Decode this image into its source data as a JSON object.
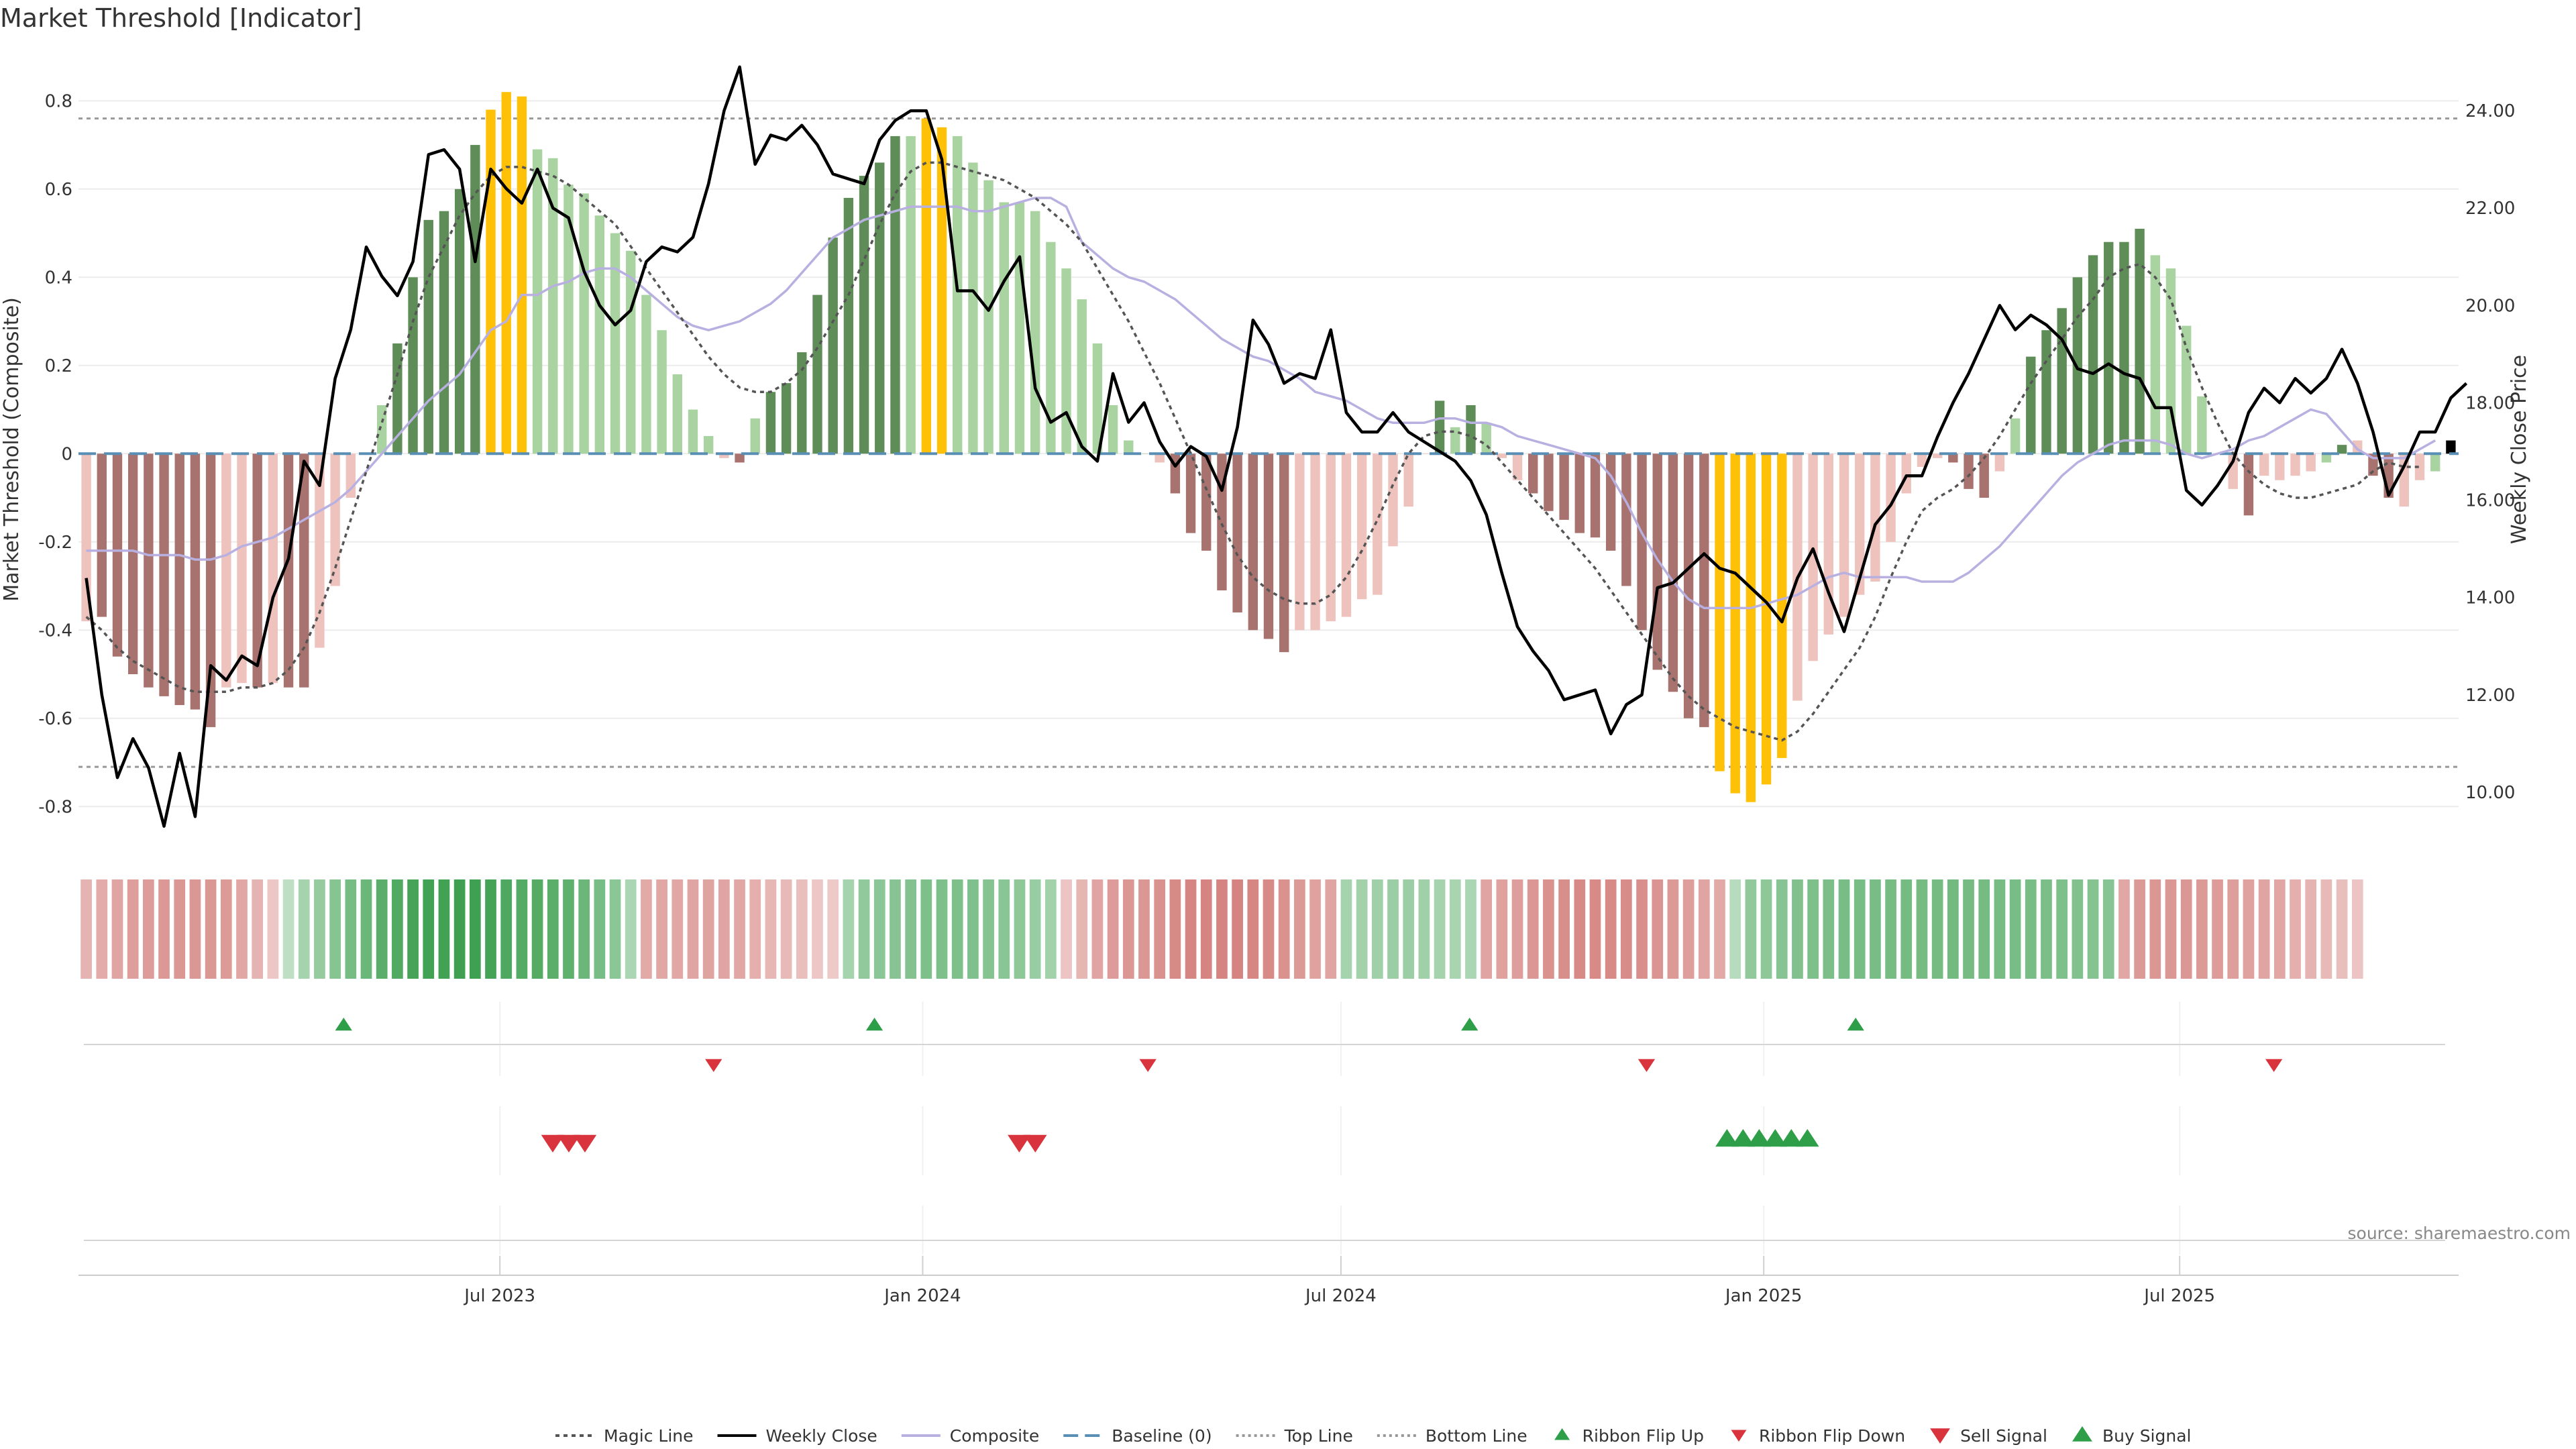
{
  "title": "Market Threshold [Indicator]",
  "source_note": "source: sharemaestro.com",
  "colors": {
    "dark_green": "#5f8d58",
    "light_green": "#a9d3a0",
    "dark_red": "#a8726f",
    "light_red": "#eec2bd",
    "gold": "#ffc107",
    "composite": "#b8b0e0",
    "magic": "#555555",
    "price": "#000000",
    "baseline": "#5a8fb5",
    "threshold": "#999999",
    "signal_green": "#2e9e48",
    "signal_red": "#d9343e"
  },
  "chart_data": {
    "type": "bar",
    "title": "Market Threshold [Indicator]",
    "ylabel": "Market Threshold (Composite)",
    "y2label": "Weekly Close Price",
    "ylim": [
      -0.9,
      0.91
    ],
    "y2lim": [
      8.8,
      25.2
    ],
    "yticks": [
      "0.8",
      "0.6",
      "0.4",
      "0.2",
      "0",
      "-0.2",
      "-0.4",
      "-0.6",
      "-0.8"
    ],
    "y2ticks": [
      "24.00",
      "22.00",
      "20.00",
      "18.00",
      "16.00",
      "14.00",
      "12.00",
      "10.00"
    ],
    "top_line": 0.76,
    "bottom_line": -0.71,
    "x_start_date": "2023-01-02",
    "x_end_date": "2025-10-27",
    "xticks": [
      {
        "date": "2023-07-01",
        "label": "Jul 2023"
      },
      {
        "date": "2024-01-01",
        "label": "Jan 2024"
      },
      {
        "date": "2024-07-01",
        "label": "Jul 2024"
      },
      {
        "date": "2025-01-01",
        "label": "Jan 2025"
      },
      {
        "date": "2025-07-01",
        "label": "Jul 2025"
      }
    ],
    "histogram": [
      -0.38,
      -0.37,
      -0.46,
      -0.5,
      -0.53,
      -0.55,
      -0.57,
      -0.58,
      -0.62,
      -0.53,
      -0.52,
      -0.53,
      -0.52,
      -0.53,
      -0.53,
      -0.44,
      -0.3,
      -0.1,
      0.0,
      0.11,
      0.25,
      0.4,
      0.53,
      0.55,
      0.6,
      0.7,
      0.78,
      0.82,
      0.81,
      0.69,
      0.67,
      0.61,
      0.59,
      0.54,
      0.5,
      0.46,
      0.36,
      0.28,
      0.18,
      0.1,
      0.04,
      -0.01,
      -0.02,
      0.08,
      0.14,
      0.16,
      0.23,
      0.36,
      0.49,
      0.58,
      0.63,
      0.66,
      0.72,
      0.72,
      0.76,
      0.74,
      0.72,
      0.66,
      0.62,
      0.57,
      0.57,
      0.55,
      0.48,
      0.42,
      0.35,
      0.25,
      0.11,
      0.03,
      0.0,
      -0.02,
      -0.09,
      -0.18,
      -0.22,
      -0.31,
      -0.36,
      -0.4,
      -0.42,
      -0.45,
      -0.4,
      -0.4,
      -0.38,
      -0.37,
      -0.33,
      -0.32,
      -0.21,
      -0.12,
      0.0,
      0.12,
      0.06,
      0.11,
      0.07,
      -0.01,
      -0.06,
      -0.09,
      -0.13,
      -0.15,
      -0.18,
      -0.19,
      -0.22,
      -0.3,
      -0.4,
      -0.49,
      -0.54,
      -0.6,
      -0.62,
      -0.72,
      -0.77,
      -0.79,
      -0.75,
      -0.69,
      -0.56,
      -0.47,
      -0.41,
      -0.37,
      -0.32,
      -0.29,
      -0.2,
      -0.09,
      -0.03,
      -0.01,
      -0.02,
      -0.08,
      -0.1,
      -0.04,
      0.08,
      0.22,
      0.28,
      0.33,
      0.4,
      0.45,
      0.48,
      0.48,
      0.51,
      0.45,
      0.42,
      0.29,
      0.13,
      0.0,
      -0.08,
      -0.14,
      -0.05,
      -0.06,
      -0.05,
      -0.04,
      -0.02,
      0.02,
      0.03,
      -0.05,
      -0.1,
      -0.12,
      -0.06,
      -0.04,
      0.03
    ],
    "histogram_colors": [
      "light_red",
      "dark_red",
      "dark_red",
      "dark_red",
      "dark_red",
      "dark_red",
      "dark_red",
      "dark_red",
      "dark_red",
      "light_red",
      "light_red",
      "dark_red",
      "light_red",
      "dark_red",
      "dark_red",
      "light_red",
      "light_red",
      "light_red",
      "light_red",
      "light_green",
      "dark_green",
      "dark_green",
      "dark_green",
      "dark_green",
      "dark_green",
      "dark_green",
      "gold",
      "gold",
      "gold",
      "light_green",
      "light_green",
      "light_green",
      "light_green",
      "light_green",
      "light_green",
      "light_green",
      "light_green",
      "light_green",
      "light_green",
      "light_green",
      "light_green",
      "light_red",
      "dark_red",
      "light_green",
      "dark_green",
      "dark_green",
      "dark_green",
      "dark_green",
      "dark_green",
      "dark_green",
      "dark_green",
      "dark_green",
      "dark_green",
      "light_green",
      "gold",
      "gold",
      "light_green",
      "light_green",
      "light_green",
      "light_green",
      "light_green",
      "light_green",
      "light_green",
      "light_green",
      "light_green",
      "light_green",
      "light_green",
      "light_green",
      "light_green",
      "light_red",
      "dark_red",
      "dark_red",
      "dark_red",
      "dark_red",
      "dark_red",
      "dark_red",
      "dark_red",
      "dark_red",
      "light_red",
      "light_red",
      "light_red",
      "light_red",
      "light_red",
      "light_red",
      "light_red",
      "light_red",
      "light_red",
      "dark_green",
      "light_green",
      "dark_green",
      "light_green",
      "light_red",
      "light_red",
      "dark_red",
      "dark_red",
      "dark_red",
      "dark_red",
      "dark_red",
      "dark_red",
      "dark_red",
      "dark_red",
      "dark_red",
      "dark_red",
      "dark_red",
      "dark_red",
      "gold",
      "gold",
      "gold",
      "gold",
      "gold",
      "light_red",
      "light_red",
      "light_red",
      "light_red",
      "light_red",
      "light_red",
      "light_red",
      "light_red",
      "light_red",
      "light_red",
      "dark_red",
      "dark_red",
      "dark_red",
      "light_red",
      "light_green",
      "dark_green",
      "dark_green",
      "dark_green",
      "dark_green",
      "dark_green",
      "dark_green",
      "dark_green",
      "dark_green",
      "light_green",
      "light_green",
      "light_green",
      "light_green",
      "light_red",
      "light_red",
      "dark_red",
      "light_red",
      "light_red",
      "light_red",
      "light_red",
      "light_green",
      "dark_green",
      "light_red",
      "dark_red",
      "dark_red",
      "light_red",
      "light_red",
      "light_green"
    ],
    "weekly_close": [
      14.4,
      12.0,
      10.3,
      11.1,
      10.5,
      9.3,
      10.8,
      9.5,
      12.6,
      12.3,
      12.8,
      12.6,
      14.0,
      14.8,
      16.8,
      16.3,
      18.5,
      19.5,
      21.2,
      20.6,
      20.2,
      20.9,
      23.1,
      23.2,
      22.8,
      20.9,
      22.8,
      22.4,
      22.1,
      22.8,
      22.0,
      21.8,
      20.7,
      20.0,
      19.6,
      19.9,
      20.9,
      21.2,
      21.1,
      21.4,
      22.5,
      24.0,
      24.9,
      22.9,
      23.5,
      23.4,
      23.7,
      23.3,
      22.7,
      22.6,
      22.5,
      23.4,
      23.8,
      24.0,
      24.0,
      23.0,
      20.3,
      20.3,
      19.9,
      20.5,
      21.0,
      18.3,
      17.6,
      17.8,
      17.1,
      16.8,
      18.6,
      17.6,
      18.0,
      17.2,
      16.7,
      17.1,
      16.9,
      16.2,
      17.5,
      19.7,
      19.2,
      18.4,
      18.6,
      18.5,
      19.5,
      17.8,
      17.4,
      17.4,
      17.8,
      17.4,
      17.2,
      17.0,
      16.8,
      16.4,
      15.7,
      14.5,
      13.4,
      12.9,
      12.5,
      11.9,
      12.0,
      12.1,
      11.2,
      11.8,
      12.0,
      14.2,
      14.3,
      14.6,
      14.9,
      14.6,
      14.5,
      14.2,
      13.9,
      13.5,
      14.4,
      15.0,
      14.1,
      13.3,
      14.4,
      15.5,
      15.9,
      16.5,
      16.5,
      17.3,
      18.0,
      18.6,
      19.3,
      20.0,
      19.5,
      19.8,
      19.6,
      19.3,
      18.7,
      18.6,
      18.8,
      18.6,
      18.5,
      17.9,
      17.9,
      16.2,
      15.9,
      16.3,
      16.8,
      17.8,
      18.3,
      18.0,
      18.5,
      18.2,
      18.5,
      19.1,
      18.4,
      17.4,
      16.1,
      16.7,
      17.4,
      17.4,
      18.1,
      18.4
    ],
    "composite": [
      -0.22,
      -0.22,
      -0.22,
      -0.22,
      -0.23,
      -0.23,
      -0.23,
      -0.24,
      -0.24,
      -0.23,
      -0.21,
      -0.2,
      -0.19,
      -0.17,
      -0.15,
      -0.13,
      -0.11,
      -0.08,
      -0.04,
      0.0,
      0.04,
      0.08,
      0.12,
      0.15,
      0.18,
      0.23,
      0.28,
      0.3,
      0.36,
      0.36,
      0.38,
      0.39,
      0.41,
      0.42,
      0.42,
      0.4,
      0.37,
      0.34,
      0.31,
      0.29,
      0.28,
      0.29,
      0.3,
      0.32,
      0.34,
      0.37,
      0.41,
      0.45,
      0.49,
      0.51,
      0.53,
      0.54,
      0.55,
      0.56,
      0.56,
      0.56,
      0.56,
      0.55,
      0.55,
      0.56,
      0.57,
      0.58,
      0.58,
      0.56,
      0.48,
      0.45,
      0.42,
      0.4,
      0.39,
      0.37,
      0.35,
      0.32,
      0.29,
      0.26,
      0.24,
      0.22,
      0.21,
      0.19,
      0.17,
      0.14,
      0.13,
      0.12,
      0.1,
      0.08,
      0.07,
      0.07,
      0.07,
      0.08,
      0.08,
      0.07,
      0.07,
      0.06,
      0.04,
      0.03,
      0.02,
      0.01,
      0.0,
      -0.01,
      -0.05,
      -0.11,
      -0.18,
      -0.24,
      -0.29,
      -0.33,
      -0.35,
      -0.35,
      -0.35,
      -0.35,
      -0.34,
      -0.33,
      -0.32,
      -0.3,
      -0.28,
      -0.27,
      -0.28,
      -0.28,
      -0.28,
      -0.28,
      -0.29,
      -0.29,
      -0.29,
      -0.27,
      -0.24,
      -0.21,
      -0.17,
      -0.13,
      -0.09,
      -0.05,
      -0.02,
      0.0,
      0.02,
      0.03,
      0.03,
      0.03,
      0.02,
      0.0,
      -0.01,
      0.0,
      0.01,
      0.03,
      0.04,
      0.06,
      0.08,
      0.1,
      0.09,
      0.05,
      0.01,
      -0.01,
      -0.01,
      -0.01,
      0.01,
      0.03
    ],
    "magic_line": [
      -0.37,
      -0.4,
      -0.44,
      -0.47,
      -0.49,
      -0.51,
      -0.53,
      -0.54,
      -0.54,
      -0.54,
      -0.53,
      -0.53,
      -0.52,
      -0.49,
      -0.44,
      -0.36,
      -0.26,
      -0.15,
      -0.04,
      0.07,
      0.18,
      0.3,
      0.4,
      0.47,
      0.54,
      0.59,
      0.63,
      0.65,
      0.65,
      0.64,
      0.63,
      0.61,
      0.58,
      0.55,
      0.52,
      0.47,
      0.42,
      0.37,
      0.32,
      0.27,
      0.22,
      0.18,
      0.15,
      0.14,
      0.14,
      0.16,
      0.19,
      0.24,
      0.3,
      0.36,
      0.44,
      0.52,
      0.59,
      0.64,
      0.66,
      0.66,
      0.65,
      0.64,
      0.63,
      0.62,
      0.6,
      0.58,
      0.55,
      0.52,
      0.48,
      0.42,
      0.36,
      0.3,
      0.23,
      0.16,
      0.08,
      0.0,
      -0.08,
      -0.16,
      -0.23,
      -0.28,
      -0.31,
      -0.33,
      -0.34,
      -0.34,
      -0.32,
      -0.28,
      -0.22,
      -0.15,
      -0.07,
      0.0,
      0.04,
      0.05,
      0.05,
      0.04,
      0.02,
      -0.02,
      -0.06,
      -0.1,
      -0.14,
      -0.18,
      -0.22,
      -0.26,
      -0.31,
      -0.36,
      -0.41,
      -0.46,
      -0.51,
      -0.55,
      -0.58,
      -0.6,
      -0.62,
      -0.63,
      -0.64,
      -0.65,
      -0.63,
      -0.59,
      -0.54,
      -0.49,
      -0.44,
      -0.37,
      -0.28,
      -0.2,
      -0.13,
      -0.1,
      -0.08,
      -0.05,
      -0.01,
      0.04,
      0.1,
      0.16,
      0.21,
      0.26,
      0.31,
      0.35,
      0.4,
      0.42,
      0.43,
      0.4,
      0.35,
      0.24,
      0.15,
      0.07,
      0.0,
      -0.04,
      -0.07,
      -0.09,
      -0.1,
      -0.1,
      -0.09,
      -0.08,
      -0.07,
      -0.04,
      -0.02,
      -0.03,
      -0.03
    ],
    "ribbon_values": [
      -0.26,
      -0.32,
      -0.38,
      -0.42,
      -0.44,
      -0.47,
      -0.48,
      -0.48,
      -0.48,
      -0.45,
      -0.36,
      -0.26,
      -0.12,
      0.1,
      0.26,
      0.36,
      0.45,
      0.55,
      0.62,
      0.72,
      0.78,
      0.85,
      0.88,
      0.88,
      0.9,
      0.9,
      0.86,
      0.8,
      0.76,
      0.76,
      0.72,
      0.7,
      0.62,
      0.54,
      0.42,
      0.22,
      -0.34,
      -0.36,
      -0.36,
      -0.38,
      -0.39,
      -0.38,
      -0.36,
      -0.3,
      -0.24,
      -0.22,
      -0.18,
      -0.12,
      -0.1,
      0.26,
      0.38,
      0.42,
      0.44,
      0.47,
      0.5,
      0.5,
      0.5,
      0.49,
      0.46,
      0.43,
      0.4,
      0.34,
      0.28,
      -0.14,
      -0.25,
      -0.38,
      -0.44,
      -0.48,
      -0.48,
      -0.52,
      -0.57,
      -0.61,
      -0.62,
      -0.62,
      -0.62,
      -0.6,
      -0.58,
      -0.52,
      -0.46,
      -0.4,
      -0.38,
      0.26,
      0.28,
      0.3,
      0.32,
      0.32,
      0.3,
      0.26,
      0.24,
      0.22,
      -0.38,
      -0.4,
      -0.42,
      -0.48,
      -0.52,
      -0.55,
      -0.58,
      -0.58,
      -0.58,
      -0.56,
      -0.54,
      -0.5,
      -0.46,
      -0.42,
      -0.38,
      -0.34,
      0.15,
      0.38,
      0.4,
      0.44,
      0.48,
      0.5,
      0.52,
      0.54,
      0.54,
      0.54,
      0.55,
      0.56,
      0.56,
      0.56,
      0.57,
      0.56,
      0.56,
      0.55,
      0.54,
      0.54,
      0.52,
      0.5,
      0.48,
      0.46,
      0.44,
      -0.36,
      -0.46,
      -0.48,
      -0.48,
      -0.48,
      -0.46,
      -0.44,
      -0.42,
      -0.4,
      -0.38,
      -0.36,
      -0.3,
      -0.26,
      -0.22,
      -0.18,
      -0.14
    ],
    "ribbon_flip_up": [
      "2023-04-24",
      "2023-12-11",
      "2024-08-26",
      "2025-02-10"
    ],
    "ribbon_flip_down": [
      "2023-10-02",
      "2024-04-08",
      "2024-11-11",
      "2025-08-11"
    ],
    "sell_signal": [
      "2023-07-24",
      "2023-07-31",
      "2023-08-07",
      "2024-02-12",
      "2024-02-19"
    ],
    "buy_signal": [
      "2024-12-16",
      "2024-12-23",
      "2024-12-30",
      "2025-01-06",
      "2025-01-13",
      "2025-01-20"
    ],
    "legend": [
      {
        "label": "Magic Line",
        "key": "magic"
      },
      {
        "label": "Weekly Close",
        "key": "price"
      },
      {
        "label": "Composite",
        "key": "composite"
      },
      {
        "label": "Baseline (0)",
        "key": "baseline"
      },
      {
        "label": "Top Line",
        "key": "top"
      },
      {
        "label": "Bottom Line",
        "key": "bottom"
      },
      {
        "label": "Ribbon Flip Up",
        "key": "flip_up"
      },
      {
        "label": "Ribbon Flip Down",
        "key": "flip_down"
      },
      {
        "label": "Sell Signal",
        "key": "sell"
      },
      {
        "label": "Buy Signal",
        "key": "buy"
      }
    ]
  }
}
